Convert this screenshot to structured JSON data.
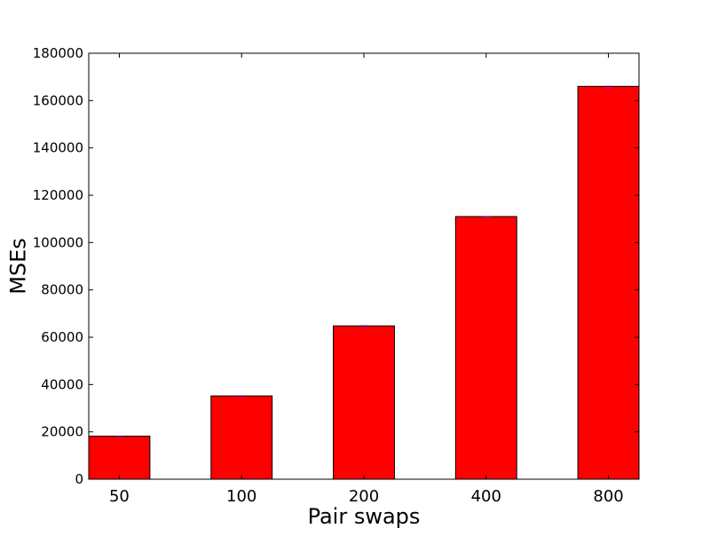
{
  "chart_data": {
    "type": "bar",
    "categories": [
      "50",
      "100",
      "200",
      "400",
      "800"
    ],
    "values": [
      18200,
      35200,
      64800,
      111000,
      166000
    ],
    "title": "",
    "xlabel": "Pair swaps",
    "ylabel": "MSEs",
    "ylim": [
      0,
      180000
    ],
    "yticks": [
      0,
      20000,
      40000,
      60000,
      80000,
      100000,
      120000,
      140000,
      160000,
      180000
    ],
    "bar_color": "#ff0000",
    "bar_edge_color": "#000000",
    "error_color": "#0000ff",
    "grid": false,
    "legend": "none"
  }
}
